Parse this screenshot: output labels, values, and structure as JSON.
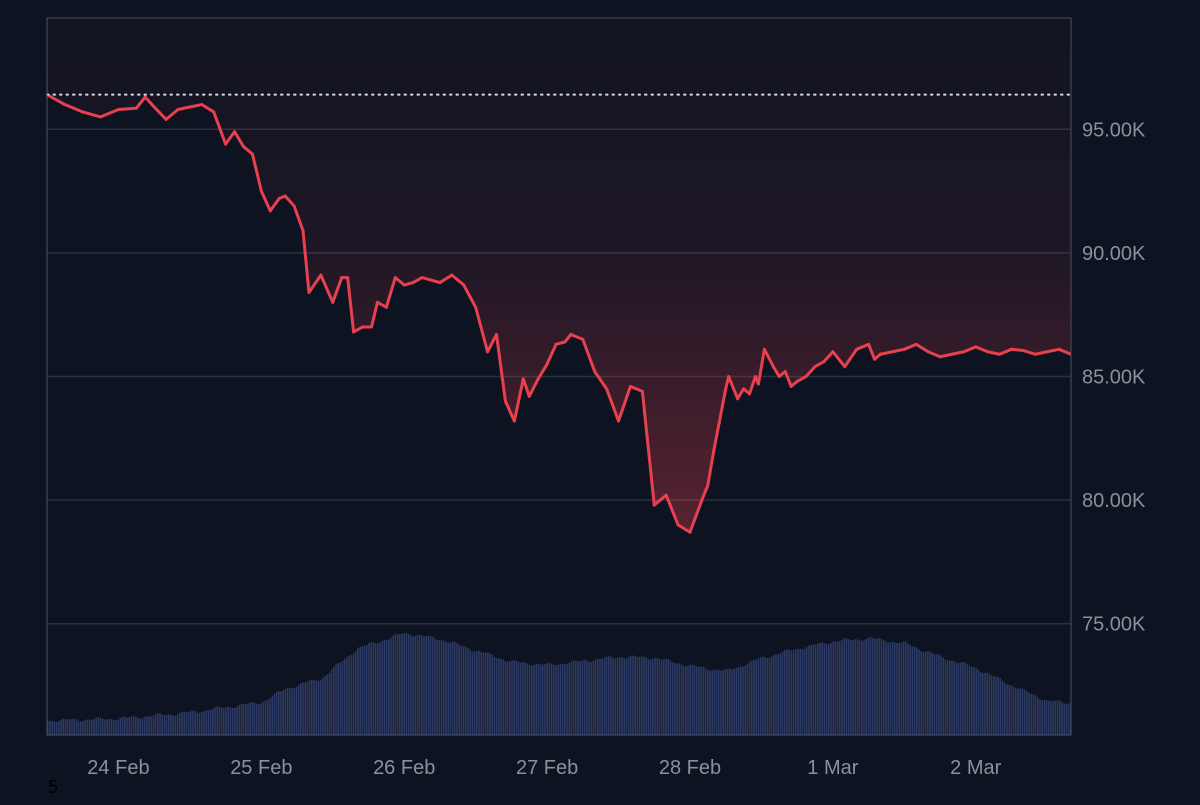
{
  "colors": {
    "background": "#0d1321",
    "grid": "#2a3140",
    "axis_text": "#8a909c",
    "price_down": "#e8404f",
    "price_up": "#3fb38f",
    "volume": "#2d3a63",
    "reference": "#d7dbe2"
  },
  "chart_data": {
    "type": "line",
    "title": "",
    "xlabel": "",
    "ylabel": "",
    "x_range": [
      "2025-02-23 12:00",
      "2025-03-02 16:00"
    ],
    "ylim": [
      70500,
      99500
    ],
    "y_ticks": [
      75000,
      80000,
      85000,
      90000,
      95000
    ],
    "y_tick_labels": [
      "75.00K",
      "80.00K",
      "85.00K",
      "90.00K",
      "95.00K"
    ],
    "x_ticks": [
      "2025-02-24 00:00",
      "2025-02-25 00:00",
      "2025-02-26 00:00",
      "2025-02-27 00:00",
      "2025-02-28 00:00",
      "2025-03-01 00:00",
      "2025-03-02 00:00"
    ],
    "x_tick_labels": [
      "24 Feb",
      "25 Feb",
      "26 Feb",
      "27 Feb",
      "28 Feb",
      "1 Mar",
      "2 Mar"
    ],
    "reference_value": 96400,
    "grid": true,
    "series": [
      {
        "type": "line",
        "x": [
          "2025-02-23 12:00",
          "2025-02-23 15:00",
          "2025-02-23 18:00",
          "2025-02-23 21:00",
          "2025-02-24 00:00",
          "2025-02-24 03:00",
          "2025-02-24 04:30",
          "2025-02-24 06:00",
          "2025-02-24 08:00",
          "2025-02-24 10:00",
          "2025-02-24 12:00",
          "2025-02-24 14:00",
          "2025-02-24 16:00",
          "2025-02-24 18:00",
          "2025-02-24 19:30",
          "2025-02-24 21:00",
          "2025-02-24 22:30",
          "2025-02-25 00:00",
          "2025-02-25 01:30",
          "2025-02-25 03:00",
          "2025-02-25 04:00",
          "2025-02-25 05:30",
          "2025-02-25 07:00",
          "2025-02-25 08:00",
          "2025-02-25 10:00",
          "2025-02-25 12:00",
          "2025-02-25 13:30",
          "2025-02-25 14:30",
          "2025-02-25 15:30",
          "2025-02-25 17:00",
          "2025-02-25 18:30",
          "2025-02-25 19:30",
          "2025-02-25 21:00",
          "2025-02-25 22:30",
          "2025-02-26 00:00",
          "2025-02-26 01:30",
          "2025-02-26 03:00",
          "2025-02-26 04:30",
          "2025-02-26 06:00",
          "2025-02-26 08:00",
          "2025-02-26 10:00",
          "2025-02-26 12:00",
          "2025-02-26 14:00",
          "2025-02-26 15:30",
          "2025-02-26 17:00",
          "2025-02-26 18:30",
          "2025-02-26 20:00",
          "2025-02-26 21:00",
          "2025-02-26 22:30",
          "2025-02-27 00:00",
          "2025-02-27 01:30",
          "2025-02-27 03:00",
          "2025-02-27 04:00",
          "2025-02-27 06:00",
          "2025-02-27 08:00",
          "2025-02-27 10:00",
          "2025-02-27 12:00",
          "2025-02-27 14:00",
          "2025-02-27 16:00",
          "2025-02-27 18:00",
          "2025-02-27 20:00",
          "2025-02-27 22:00",
          "2025-02-28 00:00",
          "2025-02-28 02:00",
          "2025-02-28 03:00",
          "2025-02-28 04:00",
          "2025-02-28 06:00",
          "2025-02-28 06:30",
          "2025-02-28 08:00",
          "2025-02-28 09:00",
          "2025-02-28 10:00",
          "2025-02-28 11:00",
          "2025-02-28 11:30",
          "2025-02-28 12:30",
          "2025-02-28 14:00",
          "2025-02-28 15:00",
          "2025-02-28 16:00",
          "2025-02-28 17:00",
          "2025-02-28 18:00",
          "2025-02-28 19:30",
          "2025-02-28 21:00",
          "2025-02-28 22:30",
          "2025-03-01 00:00",
          "2025-03-01 02:00",
          "2025-03-01 04:00",
          "2025-03-01 06:00",
          "2025-03-01 07:00",
          "2025-03-01 08:00",
          "2025-03-01 10:00",
          "2025-03-01 12:00",
          "2025-03-01 14:00",
          "2025-03-01 16:00",
          "2025-03-01 18:00",
          "2025-03-01 20:00",
          "2025-03-01 22:00",
          "2025-03-02 00:00",
          "2025-03-02 02:00",
          "2025-03-02 04:00",
          "2025-03-02 06:00",
          "2025-03-02 08:00",
          "2025-03-02 10:00",
          "2025-03-02 12:00",
          "2025-03-02 14:00",
          "2025-03-02 16:00"
        ],
        "values": [
          96400,
          96000,
          95700,
          95500,
          95800,
          95850,
          96300,
          95900,
          95400,
          95800,
          95900,
          96000,
          95700,
          94400,
          94900,
          94300,
          94000,
          92500,
          91700,
          92200,
          92300,
          91900,
          90900,
          88400,
          89100,
          88000,
          89000,
          89000,
          86800,
          87000,
          87000,
          88000,
          87800,
          89000,
          88700,
          88800,
          89000,
          88900,
          88800,
          89100,
          88700,
          87800,
          86000,
          86700,
          84000,
          83200,
          84900,
          84200,
          84900,
          85500,
          86300,
          86400,
          86700,
          86500,
          85200,
          84500,
          83200,
          84600,
          84400,
          79800,
          80200,
          79000,
          78700,
          80000,
          80600,
          82000,
          84500,
          85000,
          84100,
          84500,
          84300,
          85000,
          84700,
          86100,
          85400,
          85000,
          85200,
          84600,
          84800,
          85000,
          85400,
          85600,
          86000,
          85400,
          86100,
          86300,
          85700,
          85900,
          86000,
          86100,
          86300,
          86000,
          85800,
          85900,
          86000,
          86200,
          86000,
          85900,
          86100,
          86050,
          85900,
          86000,
          86100,
          85900
        ]
      },
      {
        "type": "area",
        "role": "volume",
        "x": [
          "2025-02-23 12:00",
          "2025-02-24 00:00",
          "2025-02-24 12:00",
          "2025-02-25 00:00",
          "2025-02-25 04:00",
          "2025-02-25 08:00",
          "2025-02-25 10:00",
          "2025-02-25 16:00",
          "2025-02-26 00:00",
          "2025-02-26 06:00",
          "2025-02-26 12:00",
          "2025-02-26 18:00",
          "2025-02-27 00:00",
          "2025-02-27 06:00",
          "2025-02-27 12:00",
          "2025-02-27 18:00",
          "2025-02-28 00:00",
          "2025-02-28 06:00",
          "2025-02-28 12:00",
          "2025-02-28 18:00",
          "2025-03-01 00:00",
          "2025-03-01 06:00",
          "2025-03-01 12:00",
          "2025-03-01 18:00",
          "2025-03-02 00:00",
          "2025-03-02 06:00",
          "2025-03-02 12:00",
          "2025-03-02 16:00"
        ],
        "values": [
          0.14,
          0.16,
          0.22,
          0.32,
          0.45,
          0.52,
          0.55,
          0.84,
          0.99,
          0.93,
          0.82,
          0.71,
          0.68,
          0.72,
          0.76,
          0.75,
          0.67,
          0.62,
          0.75,
          0.84,
          0.91,
          0.94,
          0.89,
          0.76,
          0.65,
          0.48,
          0.33,
          0.31
        ]
      }
    ]
  },
  "footer": {
    "page_number": "5"
  }
}
